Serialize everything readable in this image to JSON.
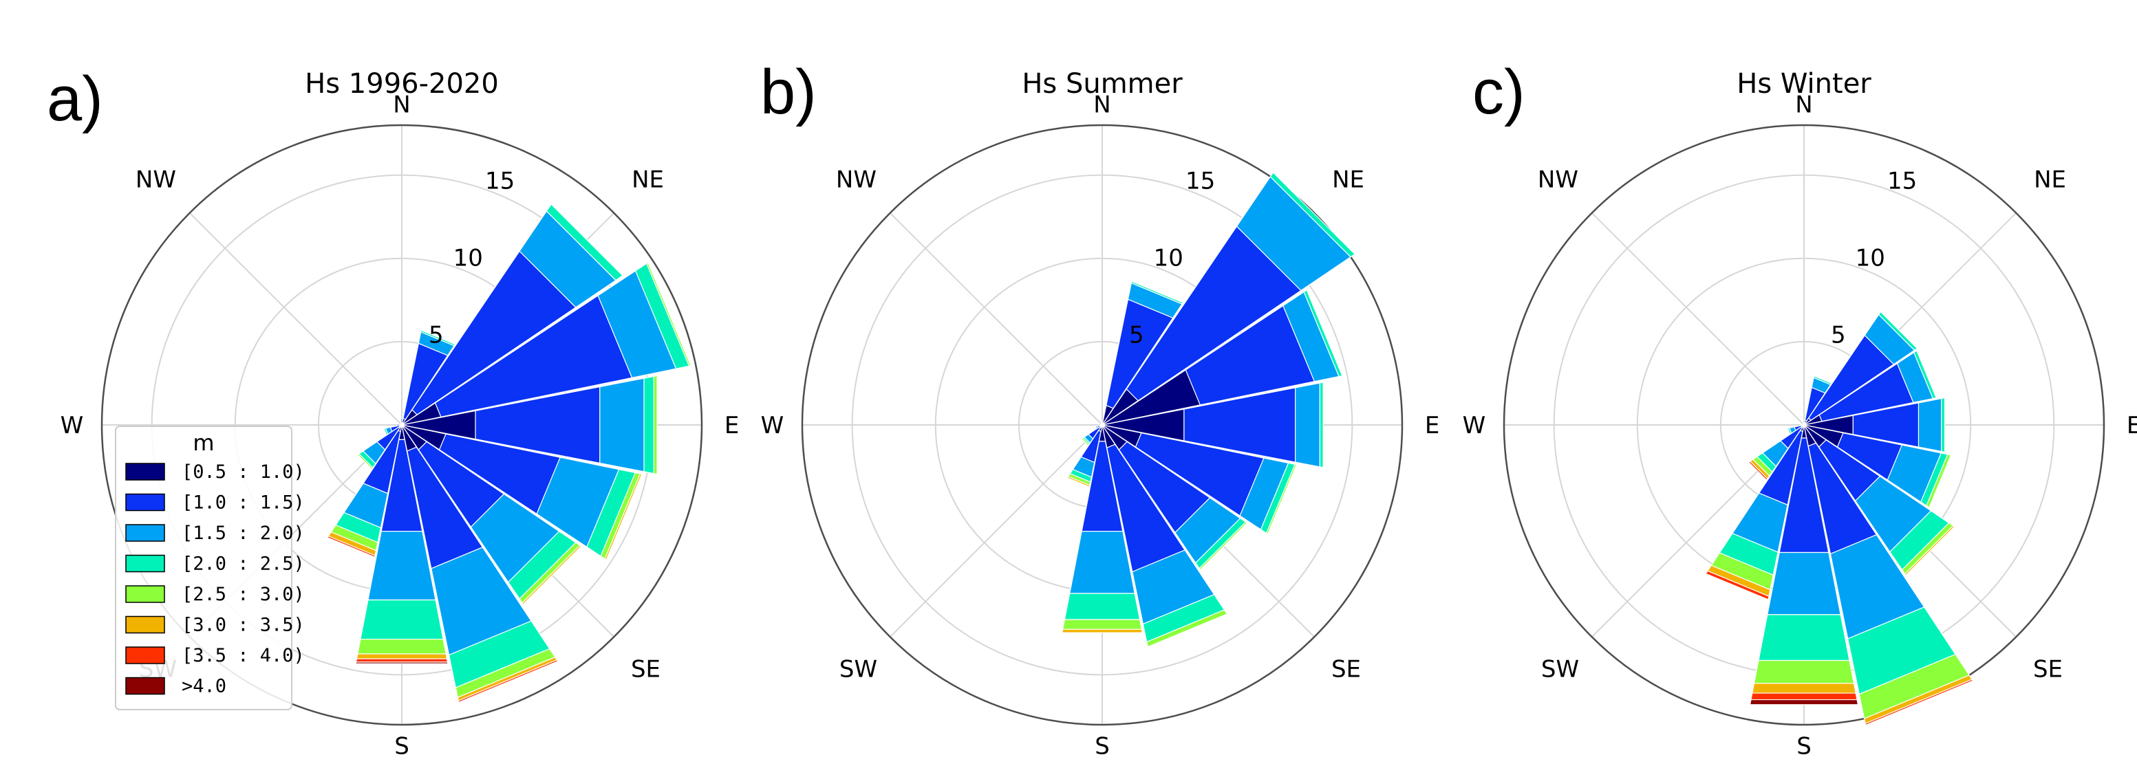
{
  "legend": {
    "title": "m",
    "bins": [
      {
        "label": "[0.5 : 1.0)",
        "color": "#00007f"
      },
      {
        "label": "[1.0 : 1.5)",
        "color": "#0a33f5"
      },
      {
        "label": "[1.5 : 2.0)",
        "color": "#00a2f5"
      },
      {
        "label": "[2.0 : 2.5)",
        "color": "#00f2b8"
      },
      {
        "label": "[2.5 : 3.0)",
        "color": "#8cff3a"
      },
      {
        "label": "[3.0 : 3.5)",
        "color": "#f2b300"
      },
      {
        "label": "[3.5 : 4.0)",
        "color": "#ff3000"
      },
      {
        "label": ">4.0",
        "color": "#8b0000"
      }
    ]
  },
  "chart_data": [
    {
      "type": "windrose",
      "panel_label": "a)",
      "title": "Hs 1996-2020",
      "directions": [
        "N",
        "NNE",
        "NE",
        "ENE",
        "E",
        "ESE",
        "SE",
        "SSE",
        "S",
        "SSW",
        "SW",
        "WSW",
        "W",
        "WNW",
        "NW",
        "NNW"
      ],
      "direction_labels": [
        "N",
        "NE",
        "E",
        "SE",
        "S",
        "SW",
        "W",
        "NW"
      ],
      "radial_ticks": [
        5,
        10,
        15
      ],
      "rmax": 18,
      "series_order": [
        "[0.5 : 1.0)",
        "[1.0 : 1.5)",
        "[1.5 : 2.0)",
        "[2.0 : 2.5)",
        "[2.5 : 3.0)",
        "[3.0 : 3.5)",
        "[3.5 : 4.0)",
        ">4.0"
      ],
      "frequencies": [
        [
          0.1,
          0.2,
          0.1,
          0,
          0,
          0,
          0,
          0
        ],
        [
          0.4,
          4.6,
          0.7,
          0.1,
          0,
          0,
          0,
          0
        ],
        [
          1.1,
          11.5,
          2.9,
          0.5,
          0,
          0,
          0,
          0
        ],
        [
          2.4,
          11.7,
          2.7,
          0.8,
          0.1,
          0,
          0,
          0
        ],
        [
          4.5,
          7.6,
          2.7,
          0.6,
          0.2,
          0,
          0,
          0
        ],
        [
          2.7,
          7.0,
          3.6,
          1.0,
          0.3,
          0.1,
          0,
          0
        ],
        [
          1.8,
          5.6,
          4.0,
          1.2,
          0.3,
          0.1,
          0,
          0
        ],
        [
          1.6,
          7.2,
          5.3,
          2.0,
          0.6,
          0.2,
          0.1,
          0
        ],
        [
          0.9,
          5.6,
          4.2,
          2.4,
          0.9,
          0.3,
          0.2,
          0.1
        ],
        [
          0.4,
          3.8,
          2.1,
          0.9,
          0.5,
          0.3,
          0.1,
          0
        ],
        [
          0.2,
          1.6,
          1.0,
          0.3,
          0.1,
          0,
          0,
          0
        ],
        [
          0.1,
          0.6,
          0.3,
          0.1,
          0,
          0,
          0,
          0
        ],
        [
          0.1,
          0.2,
          0,
          0,
          0,
          0,
          0,
          0
        ],
        [
          0,
          0.1,
          0,
          0,
          0,
          0,
          0,
          0
        ],
        [
          0,
          0.1,
          0,
          0,
          0,
          0,
          0,
          0
        ],
        [
          0,
          0.1,
          0,
          0,
          0,
          0,
          0,
          0
        ]
      ]
    },
    {
      "type": "windrose",
      "panel_label": "b)",
      "title": "Hs Summer",
      "directions": [
        "N",
        "NNE",
        "NE",
        "ENE",
        "E",
        "ESE",
        "SE",
        "SSE",
        "S",
        "SSW",
        "SW",
        "WSW",
        "W",
        "WNW",
        "NW",
        "NNW"
      ],
      "direction_labels": [
        "N",
        "NE",
        "E",
        "SE",
        "S",
        "SW",
        "W",
        "NW"
      ],
      "radial_ticks": [
        5,
        10,
        15
      ],
      "rmax": 18,
      "series_order": [
        "[0.5 : 1.0)",
        "[1.0 : 1.5)",
        "[1.5 : 2.0)",
        "[2.0 : 2.5)",
        "[2.5 : 3.0)",
        "[3.0 : 3.5)",
        "[3.5 : 4.0)",
        ">4.0"
      ],
      "frequencies": [
        [
          0.1,
          0.1,
          0,
          0,
          0,
          0,
          0,
          0
        ],
        [
          1.2,
          6.5,
          1.0,
          0.1,
          0,
          0,
          0,
          0
        ],
        [
          2.6,
          11.8,
          3.6,
          0.3,
          0,
          0,
          0,
          0
        ],
        [
          6.0,
          7.0,
          1.5,
          0.2,
          0,
          0,
          0,
          0
        ],
        [
          5.0,
          6.8,
          1.5,
          0.2,
          0,
          0,
          0,
          0
        ],
        [
          2.4,
          7.5,
          1.5,
          0.4,
          0.1,
          0,
          0,
          0
        ],
        [
          1.8,
          6.0,
          2.2,
          0.4,
          0.1,
          0,
          0,
          0
        ],
        [
          1.4,
          7.6,
          3.2,
          1.1,
          0.3,
          0,
          0,
          0
        ],
        [
          1.0,
          5.5,
          3.8,
          1.6,
          0.6,
          0.2,
          0,
          0
        ],
        [
          0.4,
          1.9,
          0.9,
          0.3,
          0.2,
          0.1,
          0,
          0
        ],
        [
          0.2,
          0.8,
          0.3,
          0.1,
          0.1,
          0,
          0,
          0
        ],
        [
          0.1,
          0.2,
          0.1,
          0,
          0,
          0,
          0,
          0
        ],
        [
          0,
          0.1,
          0,
          0,
          0,
          0,
          0,
          0
        ],
        [
          0,
          0.1,
          0,
          0,
          0,
          0,
          0,
          0
        ],
        [
          0,
          0.1,
          0,
          0,
          0,
          0,
          0,
          0
        ],
        [
          0,
          0.1,
          0,
          0,
          0,
          0,
          0,
          0
        ]
      ]
    },
    {
      "type": "windrose",
      "panel_label": "c)",
      "title": "Hs Winter",
      "directions": [
        "N",
        "NNE",
        "NE",
        "ENE",
        "E",
        "ESE",
        "SE",
        "SSE",
        "S",
        "SSW",
        "SW",
        "WSW",
        "W",
        "WNW",
        "NW",
        "NNW"
      ],
      "direction_labels": [
        "N",
        "NE",
        "E",
        "SE",
        "S",
        "SW",
        "W",
        "NW"
      ],
      "radial_ticks": [
        5,
        10,
        15
      ],
      "rmax": 18,
      "series_order": [
        "[0.5 : 1.0)",
        "[1.0 : 1.5)",
        "[1.5 : 2.0)",
        "[2.0 : 2.5)",
        "[2.5 : 3.0)",
        "[3.0 : 3.5)",
        "[3.5 : 4.0)",
        ">4.0"
      ],
      "frequencies": [
        [
          0.1,
          0.1,
          0.1,
          0,
          0,
          0,
          0,
          0
        ],
        [
          0.3,
          2.0,
          0.6,
          0.1,
          0,
          0,
          0,
          0
        ],
        [
          0.5,
          6.0,
          1.5,
          0.2,
          0,
          0,
          0,
          0
        ],
        [
          1.1,
          5.6,
          1.2,
          0.2,
          0,
          0,
          0,
          0
        ],
        [
          3.0,
          4.0,
          1.4,
          0.2,
          0,
          0,
          0,
          0
        ],
        [
          2.4,
          3.6,
          2.4,
          0.4,
          0.2,
          0,
          0,
          0
        ],
        [
          1.6,
          3.9,
          3.7,
          1.3,
          0.3,
          0.1,
          0,
          0
        ],
        [
          1.3,
          6.6,
          5.2,
          3.4,
          1.5,
          0.3,
          0.1,
          0
        ],
        [
          0.8,
          7.0,
          3.8,
          2.8,
          1.4,
          0.6,
          0.4,
          0.3
        ],
        [
          0.4,
          4.5,
          2.9,
          1.4,
          0.9,
          0.4,
          0.2,
          0
        ],
        [
          0.2,
          1.5,
          1.3,
          0.4,
          0.3,
          0.2,
          0.1,
          0
        ],
        [
          0.1,
          0.5,
          0.3,
          0.1,
          0,
          0,
          0,
          0
        ],
        [
          0,
          0.1,
          0.1,
          0,
          0,
          0,
          0,
          0
        ],
        [
          0,
          0.1,
          0,
          0,
          0,
          0,
          0,
          0
        ],
        [
          0,
          0.1,
          0,
          0,
          0,
          0,
          0,
          0
        ],
        [
          0,
          0.1,
          0,
          0,
          0,
          0,
          0,
          0
        ]
      ]
    }
  ]
}
